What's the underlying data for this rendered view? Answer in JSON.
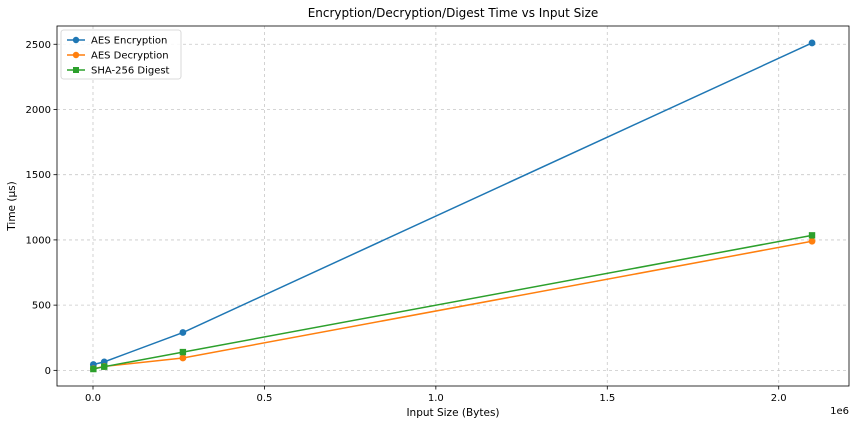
{
  "chart_data": {
    "type": "line",
    "title": "Encryption/Decryption/Digest Time vs Input Size",
    "xlabel": "Input Size (Bytes)",
    "ylabel": "Time (µs)",
    "x_offset_label": "1e6",
    "xlim": [
      -0.105,
      2.205
    ],
    "ylim": [
      -120,
      2640
    ],
    "xticks": [
      0.0,
      0.5,
      1.0,
      1.5,
      2.0
    ],
    "xtick_labels": [
      "0.0",
      "0.5",
      "1.0",
      "1.5",
      "2.0"
    ],
    "yticks": [
      0,
      500,
      1000,
      1500,
      2000,
      2500
    ],
    "ytick_labels": [
      "0",
      "500",
      "1000",
      "1500",
      "2000",
      "2500"
    ],
    "grid": true,
    "legend_position": "top-left",
    "x": [
      0.001024,
      0.032768,
      0.262144,
      2.097152
    ],
    "series": [
      {
        "name": "AES Encryption",
        "color": "#1f77b4",
        "marker": "circle",
        "values": [
          45,
          65,
          290,
          2510
        ]
      },
      {
        "name": "AES Decryption",
        "color": "#ff7f0e",
        "marker": "circle",
        "values": [
          12,
          30,
          95,
          990
        ]
      },
      {
        "name": "SHA-256 Digest",
        "color": "#2ca02c",
        "marker": "square",
        "values": [
          10,
          28,
          140,
          1035
        ]
      }
    ]
  }
}
